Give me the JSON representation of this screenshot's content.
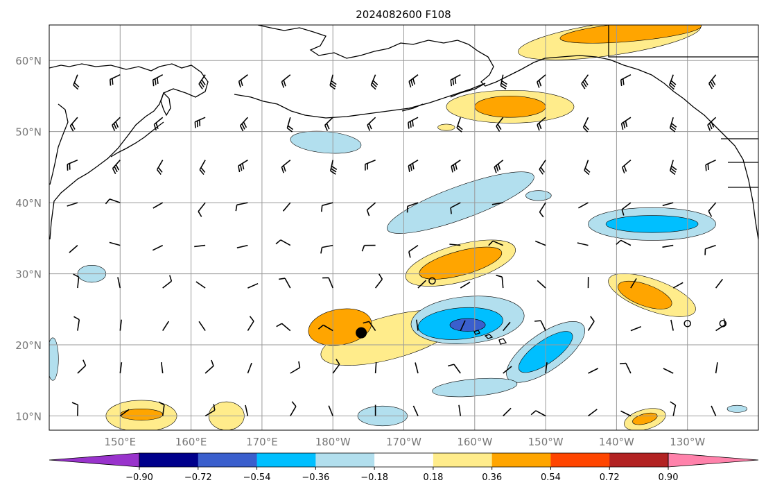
{
  "title": "2024082600 F108",
  "map": {
    "projection": "Plate Carree",
    "lon_range": [
      140,
      240
    ],
    "lat_range": [
      8,
      65
    ],
    "lat_ticks": [
      {
        "value": 10,
        "label": "10°N"
      },
      {
        "value": 20,
        "label": "20°N"
      },
      {
        "value": 30,
        "label": "30°N"
      },
      {
        "value": 40,
        "label": "40°N"
      },
      {
        "value": 50,
        "label": "50°N"
      },
      {
        "value": 60,
        "label": "60°N"
      }
    ],
    "lon_ticks": [
      {
        "value": 150,
        "label": "150°E"
      },
      {
        "value": 160,
        "label": "160°E"
      },
      {
        "value": 170,
        "label": "170°E"
      },
      {
        "value": 180,
        "label": "180°W"
      },
      {
        "value": 190,
        "label": "170°W"
      },
      {
        "value": 200,
        "label": "160°W"
      },
      {
        "value": 210,
        "label": "150°W"
      },
      {
        "value": 220,
        "label": "140°W"
      },
      {
        "value": 230,
        "label": "130°W"
      }
    ],
    "storm_marker": {
      "lon": 184,
      "lat": 21.7
    },
    "small_circles": [
      {
        "lon": 194,
        "lat": 29
      },
      {
        "lon": 230,
        "lat": 23
      },
      {
        "lon": 235,
        "lat": 23
      }
    ]
  },
  "colorbar": {
    "levels": [
      "−0.90",
      "−0.72",
      "−0.54",
      "−0.36",
      "−0.18",
      "0.18",
      "0.36",
      "0.54",
      "0.72",
      "0.90"
    ],
    "colors": [
      "#9933cc",
      "#00008b",
      "#3a5fcd",
      "#00bfff",
      "#b2dfee",
      "#ffffff",
      "#ffec8b",
      "#ffa500",
      "#ff4500",
      "#b22222",
      "#ff82ab"
    ]
  },
  "shading": [
    {
      "lon": 188,
      "lat": 21,
      "rx": 10,
      "ry": 3,
      "rot": -15,
      "level": 0.18,
      "color": "#ffec8b"
    },
    {
      "lon": 181,
      "lat": 22.5,
      "rx": 4.5,
      "ry": 2.5,
      "rot": -10,
      "level": 0.36,
      "color": "#ffa500"
    },
    {
      "lon": 198,
      "lat": 31.5,
      "rx": 8,
      "ry": 2.6,
      "rot": -15,
      "level": 0.18,
      "color": "#ffec8b"
    },
    {
      "lon": 198,
      "lat": 31.5,
      "rx": 6,
      "ry": 1.7,
      "rot": -15,
      "level": 0.36,
      "color": "#ffa500"
    },
    {
      "lon": 205,
      "lat": 53.5,
      "rx": 9,
      "ry": 2.3,
      "rot": 0,
      "level": 0.18,
      "color": "#ffec8b"
    },
    {
      "lon": 205,
      "lat": 53.5,
      "rx": 5,
      "ry": 1.5,
      "rot": 0,
      "level": 0.36,
      "color": "#ffa500"
    },
    {
      "lon": 219,
      "lat": 63,
      "rx": 13,
      "ry": 2.3,
      "rot": -8,
      "level": 0.18,
      "color": "#ffec8b"
    },
    {
      "lon": 222,
      "lat": 64,
      "rx": 10,
      "ry": 1.3,
      "rot": -5,
      "level": 0.36,
      "color": "#ffa500"
    },
    {
      "lon": 225,
      "lat": 27,
      "rx": 6.5,
      "ry": 2.2,
      "rot": 20,
      "level": 0.18,
      "color": "#ffec8b"
    },
    {
      "lon": 224,
      "lat": 27,
      "rx": 4,
      "ry": 1.5,
      "rot": 20,
      "level": 0.36,
      "color": "#ffa500"
    },
    {
      "lon": 153,
      "lat": 10,
      "rx": 5,
      "ry": 2.2,
      "rot": 0,
      "level": 0.18,
      "color": "#ffec8b"
    },
    {
      "lon": 153,
      "lat": 10.2,
      "rx": 3,
      "ry": 0.8,
      "rot": 0,
      "level": 0.36,
      "color": "#ffa500"
    },
    {
      "lon": 165,
      "lat": 10,
      "rx": 2.5,
      "ry": 2,
      "rot": 0,
      "level": 0.18,
      "color": "#ffec8b"
    },
    {
      "lon": 224,
      "lat": 9.5,
      "rx": 3,
      "ry": 1.4,
      "rot": -15,
      "level": 0.18,
      "color": "#ffec8b"
    },
    {
      "lon": 224,
      "lat": 9.6,
      "rx": 1.8,
      "ry": 0.7,
      "rot": -15,
      "level": 0.36,
      "color": "#ffa500"
    },
    {
      "lon": 196,
      "lat": 50.6,
      "rx": 1.2,
      "ry": 0.45,
      "rot": 0,
      "level": 0.18,
      "color": "#ffec8b"
    },
    {
      "lon": 179,
      "lat": 48.5,
      "rx": 5,
      "ry": 1.5,
      "rot": 5,
      "level": -0.18,
      "color": "#b2dfee"
    },
    {
      "lon": 198,
      "lat": 40,
      "rx": 11,
      "ry": 2.3,
      "rot": -20,
      "level": -0.18,
      "color": "#b2dfee"
    },
    {
      "lon": 209,
      "lat": 41,
      "rx": 1.8,
      "ry": 0.7,
      "rot": 0,
      "level": -0.18,
      "color": "#b2dfee"
    },
    {
      "lon": 225,
      "lat": 37,
      "rx": 9,
      "ry": 2.3,
      "rot": 0,
      "level": -0.18,
      "color": "#b2dfee"
    },
    {
      "lon": 225,
      "lat": 37,
      "rx": 6.5,
      "ry": 1.2,
      "rot": 0,
      "level": -0.36,
      "color": "#00bfff"
    },
    {
      "lon": 199,
      "lat": 23.5,
      "rx": 8,
      "ry": 3.3,
      "rot": -5,
      "level": -0.18,
      "color": "#b2dfee"
    },
    {
      "lon": 198,
      "lat": 23,
      "rx": 6,
      "ry": 2.2,
      "rot": -5,
      "level": -0.36,
      "color": "#00bfff"
    },
    {
      "lon": 199,
      "lat": 22.8,
      "rx": 2.5,
      "ry": 0.9,
      "rot": 0,
      "level": -0.54,
      "color": "#3a5fcd"
    },
    {
      "lon": 210,
      "lat": 19,
      "rx": 6.5,
      "ry": 2.6,
      "rot": -35,
      "level": -0.18,
      "color": "#b2dfee"
    },
    {
      "lon": 210,
      "lat": 19,
      "rx": 4.5,
      "ry": 1.6,
      "rot": -35,
      "level": -0.36,
      "color": "#00bfff"
    },
    {
      "lon": 200,
      "lat": 14,
      "rx": 6,
      "ry": 1.2,
      "rot": -5,
      "level": -0.18,
      "color": "#b2dfee"
    },
    {
      "lon": 146,
      "lat": 30,
      "rx": 2,
      "ry": 1.2,
      "rot": 0,
      "level": -0.18,
      "color": "#b2dfee"
    },
    {
      "lon": 187,
      "lat": 10,
      "rx": 3.5,
      "ry": 1.4,
      "rot": 0,
      "level": -0.18,
      "color": "#b2dfee"
    },
    {
      "lon": 237,
      "lat": 11,
      "rx": 1.4,
      "ry": 0.5,
      "rot": 0,
      "level": -0.18,
      "color": "#b2dfee"
    },
    {
      "lon": 140.5,
      "lat": 18,
      "rx": 0.8,
      "ry": 3,
      "rot": 0,
      "level": -0.18,
      "color": "#b2dfee"
    }
  ]
}
